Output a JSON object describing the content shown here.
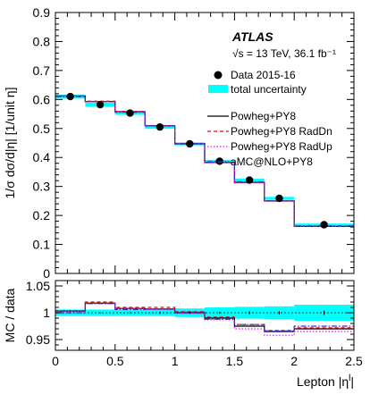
{
  "chart_data": [
    {
      "type": "step",
      "panel": "main",
      "ylabel": "1/σ dσ/d|η| [1/unit η]",
      "xlabel": "Lepton |η^l|",
      "xlim": [
        0,
        2.5
      ],
      "ylim": [
        0,
        0.9
      ],
      "x_ticks": [
        "0",
        "0.5",
        "1",
        "1.5",
        "2",
        "2.5"
      ],
      "y_ticks": [
        "0",
        "0.1",
        "0.2",
        "0.3",
        "0.4",
        "0.5",
        "0.6",
        "0.7",
        "0.8",
        "0.9"
      ],
      "bin_edges": [
        0,
        0.25,
        0.5,
        0.75,
        1.0,
        1.25,
        1.5,
        1.75,
        2.0,
        2.5
      ],
      "experiment": "ATLAS",
      "energy_label": "√s = 13 TeV, 36.1 fb⁻¹",
      "legend": {
        "data": "Data 2015-16",
        "uncertainty": "total uncertainty",
        "s1": "Powheg+PY8",
        "s2": "Powheg+PY8 RadDn",
        "s3": "Powheg+PY8 RadUp",
        "s4": "aMC@NLO+PY8"
      },
      "data_points": [
        0.61,
        0.582,
        0.553,
        0.505,
        0.447,
        0.387,
        0.322,
        0.259,
        0.168
      ],
      "uncertainty_halfwidth": [
        0.007,
        0.007,
        0.006,
        0.006,
        0.005,
        0.005,
        0.005,
        0.005,
        0.004
      ],
      "series": [
        {
          "name": "Powheg+PY8",
          "color": "#000000",
          "dash": "none",
          "values": [
            0.612,
            0.593,
            0.558,
            0.509,
            0.447,
            0.383,
            0.314,
            0.25,
            0.162
          ]
        },
        {
          "name": "Powheg+PY8 RadDn",
          "color": "#ff0000",
          "dash": "4,3",
          "values": [
            0.612,
            0.594,
            0.559,
            0.51,
            0.447,
            0.384,
            0.315,
            0.25,
            0.163
          ]
        },
        {
          "name": "Powheg+PY8 RadUp",
          "color": "#ff00ff",
          "dash": "1.5,2",
          "values": [
            0.612,
            0.593,
            0.558,
            0.509,
            0.447,
            0.382,
            0.312,
            0.249,
            0.162
          ]
        },
        {
          "name": "aMC@NLO+PY8",
          "color": "#3333cc",
          "dash": "6,2,1.5,2",
          "values": [
            0.61,
            0.593,
            0.556,
            0.509,
            0.448,
            0.382,
            0.316,
            0.25,
            0.164
          ]
        }
      ],
      "colors": {
        "uncertainty": "#00ffff"
      }
    },
    {
      "type": "step",
      "panel": "ratio",
      "ylabel": "MC / data",
      "xlim": [
        0,
        2.5
      ],
      "ylim": [
        0.93,
        1.06
      ],
      "y_ticks": [
        "0.95",
        "1",
        "1.05"
      ],
      "bin_edges": [
        0,
        0.25,
        0.5,
        0.75,
        1.0,
        1.25,
        1.5,
        1.75,
        2.0,
        2.5
      ],
      "uncertainty_halfwidth": [
        0.006,
        0.006,
        0.006,
        0.006,
        0.008,
        0.01,
        0.011,
        0.012,
        0.015
      ],
      "data_errors": [
        0.001,
        0.001,
        0.001,
        0.002,
        0.002,
        0.002,
        0.003,
        0.003,
        0.004
      ],
      "series": [
        {
          "name": "Powheg+PY8",
          "color": "#000000",
          "dash": "none",
          "values": [
            1.003,
            1.018,
            1.008,
            1.007,
            1.0,
            0.99,
            0.975,
            0.965,
            0.97
          ]
        },
        {
          "name": "Powheg+PY8 RadDn",
          "color": "#ff0000",
          "dash": "4,3",
          "values": [
            1.004,
            1.02,
            1.01,
            1.01,
            1.002,
            0.992,
            0.978,
            0.967,
            0.972
          ]
        },
        {
          "name": "Powheg+PY8 RadUp",
          "color": "#ff00ff",
          "dash": "1.5,2",
          "values": [
            1.003,
            1.017,
            1.008,
            1.006,
            0.999,
            0.987,
            0.97,
            0.958,
            0.965
          ]
        },
        {
          "name": "aMC@NLO+PY8",
          "color": "#3333cc",
          "dash": "6,2,1.5,2",
          "values": [
            1.0,
            1.017,
            1.006,
            1.007,
            1.001,
            0.988,
            0.978,
            0.966,
            0.975
          ]
        }
      ]
    }
  ]
}
